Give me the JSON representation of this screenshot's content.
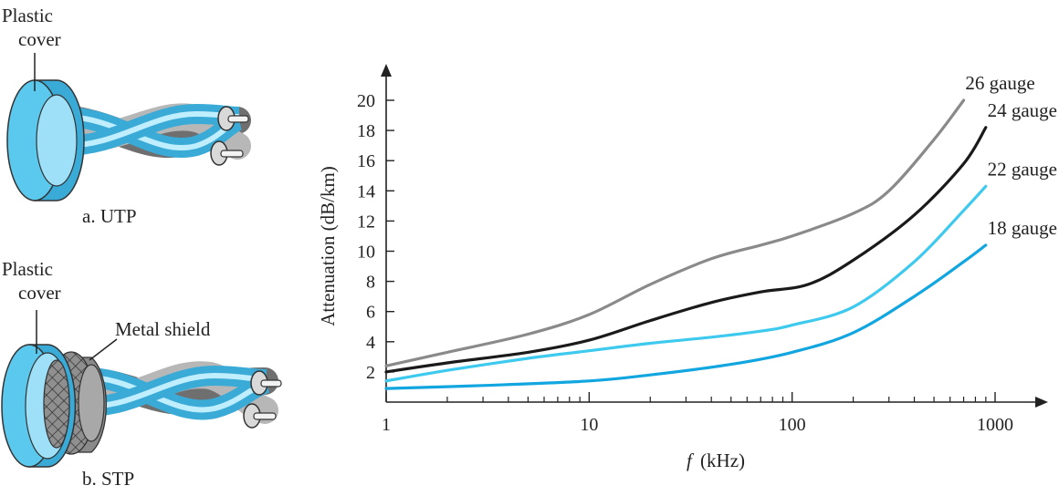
{
  "utp": {
    "cover_label_1": "Plastic",
    "cover_label_2": "cover",
    "caption": "a. UTP"
  },
  "stp": {
    "cover_label_1": "Plastic",
    "cover_label_2": "cover",
    "shield_label": "Metal shield",
    "caption": "b. STP"
  },
  "colors": {
    "jacket": "#5bc8ee",
    "jacket_dark": "#3aaad6",
    "wire_gray": "#b7b7b7",
    "wire_dark": "#6f6f6f",
    "shield": "#9a9a9a",
    "gauge26": "#8a8a8a",
    "gauge24": "#1a1a1a",
    "gauge22": "#3ec9ee",
    "gauge18": "#12a6e0"
  },
  "chart_data": {
    "type": "line",
    "xlabel_italic": "f",
    "xlabel_rest": "(kHz)",
    "ylabel": "Attenuation (dB/km)",
    "x_scale": "log",
    "xlim": [
      1,
      1000
    ],
    "ylim": [
      0,
      20
    ],
    "x_ticks": [
      1,
      10,
      100,
      1000
    ],
    "x_tick_labels": [
      "1",
      "10",
      "100",
      "1000"
    ],
    "y_ticks": [
      2,
      4,
      6,
      8,
      10,
      12,
      14,
      16,
      18,
      20
    ],
    "y_tick_labels": [
      "2",
      "4",
      "6",
      "8",
      "10",
      "12",
      "14",
      "16",
      "18",
      "20"
    ],
    "series": [
      {
        "name": "26 gauge",
        "color": "#8a8a8a",
        "points": [
          [
            1,
            2.4
          ],
          [
            2,
            3.3
          ],
          [
            5,
            4.5
          ],
          [
            10,
            5.8
          ],
          [
            20,
            7.8
          ],
          [
            40,
            9.5
          ],
          [
            70,
            10.4
          ],
          [
            100,
            11.0
          ],
          [
            200,
            12.5
          ],
          [
            300,
            14.0
          ],
          [
            500,
            17.4
          ],
          [
            700,
            20.0
          ]
        ]
      },
      {
        "name": "24 gauge",
        "color": "#1a1a1a",
        "points": [
          [
            1,
            2.0
          ],
          [
            2,
            2.6
          ],
          [
            5,
            3.3
          ],
          [
            10,
            4.1
          ],
          [
            20,
            5.4
          ],
          [
            40,
            6.6
          ],
          [
            70,
            7.3
          ],
          [
            120,
            7.8
          ],
          [
            200,
            9.4
          ],
          [
            400,
            12.4
          ],
          [
            700,
            15.8
          ],
          [
            900,
            18.2
          ]
        ]
      },
      {
        "name": "22 gauge",
        "color": "#3ec9ee",
        "points": [
          [
            1,
            1.4
          ],
          [
            2,
            2.1
          ],
          [
            5,
            2.9
          ],
          [
            10,
            3.4
          ],
          [
            20,
            3.9
          ],
          [
            40,
            4.3
          ],
          [
            70,
            4.7
          ],
          [
            100,
            5.1
          ],
          [
            200,
            6.3
          ],
          [
            400,
            9.3
          ],
          [
            700,
            12.7
          ],
          [
            900,
            14.3
          ]
        ]
      },
      {
        "name": "18 gauge",
        "color": "#12a6e0",
        "points": [
          [
            1,
            0.9
          ],
          [
            3,
            1.1
          ],
          [
            10,
            1.4
          ],
          [
            20,
            1.8
          ],
          [
            50,
            2.5
          ],
          [
            100,
            3.3
          ],
          [
            200,
            4.6
          ],
          [
            400,
            7.0
          ],
          [
            700,
            9.3
          ],
          [
            900,
            10.4
          ]
        ]
      }
    ]
  }
}
